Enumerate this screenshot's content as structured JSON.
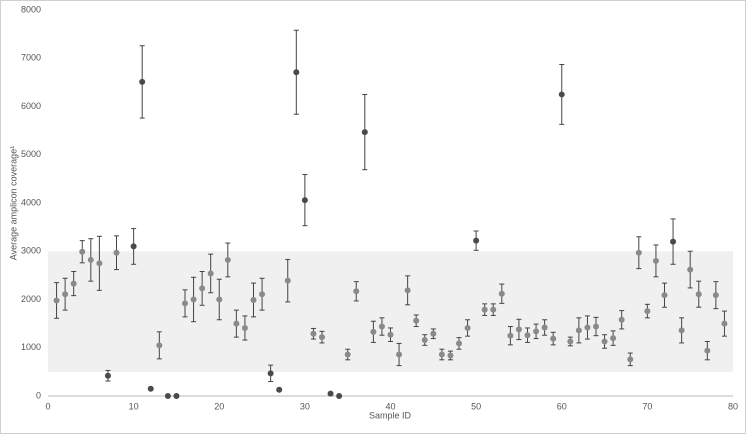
{
  "chart_data": {
    "type": "scatter",
    "x_label": "Sample ID",
    "y_label": "Average amplicon coverage¹",
    "xlim": [
      0,
      80
    ],
    "xticks": [
      0,
      10,
      20,
      30,
      40,
      50,
      60,
      70,
      80
    ],
    "ylim": [
      0,
      8000
    ],
    "yticks": [
      0,
      1000,
      2000,
      3000,
      4000,
      5000,
      6000,
      7000,
      8000
    ],
    "band": [
      500,
      3000
    ],
    "band_color": "#f0f0f0",
    "series": [
      {
        "color": "#8a8a8a",
        "x": [
          1,
          2,
          3,
          4,
          5,
          6,
          8,
          13,
          16,
          17,
          18,
          19,
          20,
          21,
          22,
          23,
          24,
          25,
          28,
          31,
          32,
          35,
          36,
          38,
          39,
          40,
          41,
          42,
          43,
          44,
          45,
          46,
          47,
          48,
          49,
          51,
          52,
          53,
          54,
          55,
          56,
          57,
          58,
          59,
          61,
          62,
          63,
          64,
          65,
          66,
          67,
          68,
          69,
          70,
          71,
          72,
          74,
          75,
          76,
          77,
          78,
          79
        ],
        "values": [
          1980,
          2110,
          2330,
          2990,
          2820,
          2750,
          2970,
          1050,
          1920,
          2000,
          2230,
          2540,
          2000,
          2820,
          1500,
          1410,
          1990,
          2110,
          2390,
          1290,
          1220,
          860,
          2170,
          1330,
          1440,
          1270,
          860,
          2190,
          1560,
          1160,
          1290,
          860,
          840,
          1090,
          1410,
          1790,
          1790,
          2120,
          1250,
          1380,
          1260,
          1340,
          1420,
          1190,
          1130,
          1360,
          1420,
          1440,
          1130,
          1200,
          1580,
          760,
          2970,
          1760,
          2800,
          2090,
          1360,
          2620,
          2110,
          940,
          2090,
          1500
        ],
        "errors": [
          370,
          330,
          250,
          230,
          440,
          560,
          350,
          280,
          280,
          460,
          350,
          400,
          420,
          350,
          280,
          250,
          350,
          330,
          440,
          110,
          120,
          110,
          200,
          220,
          180,
          140,
          230,
          300,
          120,
          110,
          100,
          110,
          90,
          120,
          170,
          120,
          120,
          200,
          190,
          210,
          150,
          150,
          160,
          130,
          90,
          260,
          240,
          190,
          140,
          150,
          190,
          130,
          330,
          140,
          330,
          250,
          260,
          380,
          270,
          190,
          280,
          260
        ]
      },
      {
        "color": "#4a4a4a",
        "x": [
          7,
          10,
          11,
          12,
          14,
          15,
          26,
          27,
          29,
          30,
          33,
          34,
          37,
          50,
          60,
          73
        ],
        "values": [
          420,
          3100,
          6510,
          150,
          0,
          0,
          470,
          130,
          6710,
          4060,
          50,
          0,
          5470,
          3220,
          6250,
          3200
        ],
        "errors": [
          110,
          370,
          750,
          null,
          null,
          null,
          170,
          null,
          870,
          530,
          null,
          null,
          780,
          200,
          620,
          470
        ]
      }
    ]
  }
}
